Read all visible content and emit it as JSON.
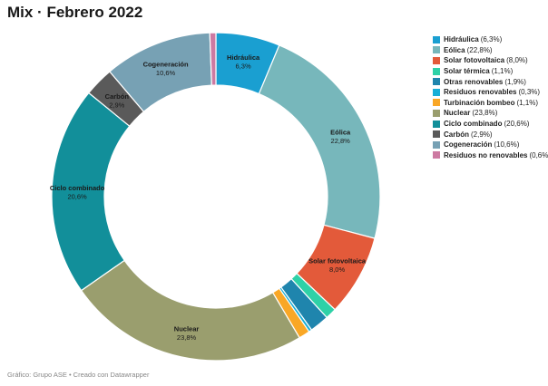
{
  "title": "Mix · Febrero 2022",
  "footer": "Gráfico: Grupo ASE • Creado con Datawrapper",
  "chart_data": {
    "type": "pie",
    "variant": "donut",
    "title": "Mix · Febrero 2022",
    "legend_position": "right",
    "unit": "%",
    "categories": [
      "Hidráulica",
      "Eólica",
      "Solar fotovoltaica",
      "Solar térmica",
      "Otras renovables",
      "Residuos renovables",
      "Turbinación bombeo",
      "Nuclear",
      "Ciclo combinado",
      "Carbón",
      "Cogeneración",
      "Residuos no renovables"
    ],
    "values": [
      6.3,
      22.8,
      8.0,
      1.1,
      1.9,
      0.3,
      1.1,
      23.8,
      20.6,
      2.9,
      10.6,
      0.6
    ],
    "value_labels": [
      "6,3%",
      "22,8%",
      "8,0%",
      "1,1%",
      "1,9%",
      "0,3%",
      "1,1%",
      "23,8%",
      "20,6%",
      "2,9%",
      "10,6%",
      "0,6%"
    ],
    "legend_labels": [
      "(6,3%)",
      "(22,8%)",
      "(8,0%)",
      "(1,1%)",
      "(1,9%)",
      "(0,3%)",
      "(1,1%)",
      "(23,8%)",
      "(20,6%)",
      "(2,9%)",
      "(10,6%)",
      "(0,6%)"
    ],
    "labeled_on_chart": [
      true,
      true,
      true,
      false,
      false,
      false,
      false,
      true,
      true,
      true,
      true,
      false
    ],
    "colors": [
      "#1a9fd1",
      "#77b7bb",
      "#e35a3a",
      "#2ed1a7",
      "#1f85ad",
      "#19afd7",
      "#f9a726",
      "#9a9e6e",
      "#128f9a",
      "#5a5a5a",
      "#77a1b4",
      "#cd7aa2"
    ]
  }
}
